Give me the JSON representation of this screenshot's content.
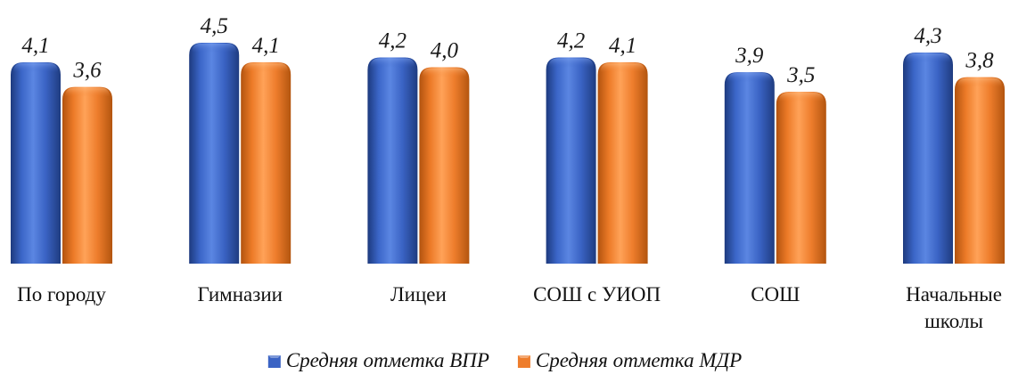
{
  "chart_data": {
    "type": "bar",
    "title": "",
    "xlabel": "",
    "ylabel": "",
    "categories": [
      [
        "По городу"
      ],
      [
        "Гимназии"
      ],
      [
        "Лицеи"
      ],
      [
        "СОШ с УИОП"
      ],
      [
        "СОШ"
      ],
      [
        "Начальные",
        "школы"
      ]
    ],
    "series": [
      {
        "name": "Средняя отметка ВПР",
        "values": [
          4.1,
          4.5,
          4.2,
          4.2,
          3.9,
          4.3
        ],
        "labels": [
          "4,1",
          "4,5",
          "4,2",
          "4,2",
          "3,9",
          "4,3"
        ],
        "color": "#3a63c4"
      },
      {
        "name": "Средняя отметка МДР",
        "values": [
          3.6,
          4.1,
          4.0,
          4.1,
          3.5,
          3.8
        ],
        "labels": [
          "3,6",
          "4,1",
          "4,0",
          "4,1",
          "3,5",
          "3,8"
        ],
        "color": "#ee7d2c"
      }
    ],
    "ylim": [
      0,
      4.5
    ],
    "grid": false,
    "legend_position": "bottom",
    "bar_style": "3d-rounded-cylinder"
  }
}
